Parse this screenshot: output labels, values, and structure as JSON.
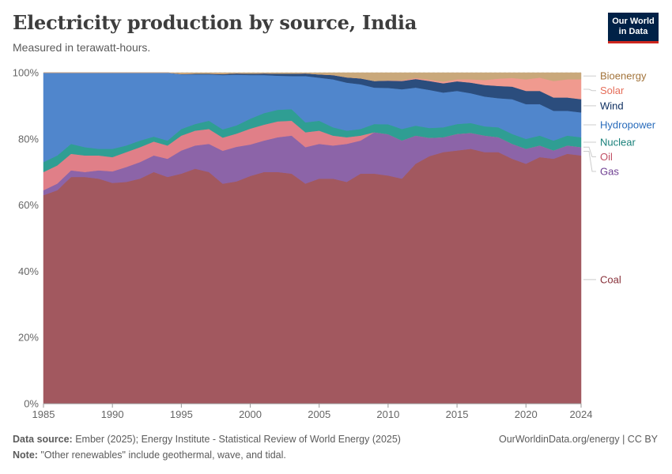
{
  "header": {
    "title": "Electricity production by source, India",
    "subtitle": "Measured in terawatt-hours.",
    "logo_line1": "Our World",
    "logo_line2": "in Data"
  },
  "footer": {
    "source_label": "Data source:",
    "source_text": "Ember (2025); Energy Institute - Statistical Review of World Energy (2025)",
    "note_label": "Note:",
    "note_text": "\"Other renewables\" include geothermal, wave, and tidal.",
    "credit": "OurWorldinData.org/energy | CC BY"
  },
  "chart_data": {
    "type": "area",
    "stacked": true,
    "relative": true,
    "title": "Electricity production by source, India",
    "subtitle": "Measured in terawatt-hours.",
    "x_tick_labels": [
      "1985",
      "1990",
      "1995",
      "2000",
      "2005",
      "2010",
      "2015",
      "2020",
      "2024"
    ],
    "x_ticks": [
      1985,
      1990,
      1995,
      2000,
      2005,
      2010,
      2015,
      2020,
      2024
    ],
    "y_tick_labels": [
      "0%",
      "20%",
      "40%",
      "60%",
      "80%",
      "100%"
    ],
    "y_ticks": [
      0,
      20,
      40,
      60,
      80,
      100
    ],
    "xlim": [
      1985,
      2024
    ],
    "ylim": [
      0,
      100
    ],
    "grid": "horizontal dashed",
    "legend": "right, inline labels",
    "x": [
      1985,
      1986,
      1987,
      1988,
      1989,
      1990,
      1991,
      1992,
      1993,
      1994,
      1995,
      1996,
      1997,
      1998,
      1999,
      2000,
      2001,
      2002,
      2003,
      2004,
      2005,
      2006,
      2007,
      2008,
      2009,
      2010,
      2011,
      2012,
      2013,
      2014,
      2015,
      2016,
      2017,
      2018,
      2019,
      2020,
      2021,
      2022,
      2023,
      2024
    ],
    "series": [
      {
        "name": "Coal",
        "color": "#a2585f",
        "label_color": "#883039",
        "values": [
          63.0,
          64.5,
          68.5,
          68.5,
          68.0,
          66.7,
          67.0,
          68.0,
          70.0,
          68.5,
          69.5,
          71.0,
          70.0,
          66.8,
          67.5,
          68.8,
          70.0,
          70.0,
          69.5,
          66.5,
          68.0,
          68.0,
          67.0,
          69.5,
          69.5,
          69.0,
          68.0,
          72.5,
          74.8,
          76.0,
          76.5,
          77.0,
          76.0,
          76.0,
          74.0,
          72.5,
          74.5,
          74.0,
          75.5,
          75.0
        ]
      },
      {
        "name": "Gas",
        "color": "#8c64a8",
        "label_color": "#6d3e91",
        "values": [
          1.5,
          2.0,
          2.0,
          1.5,
          2.5,
          3.5,
          4.5,
          5.0,
          5.0,
          5.5,
          7.0,
          7.0,
          8.5,
          10.0,
          10.5,
          9.5,
          9.5,
          10.5,
          11.5,
          11.0,
          10.5,
          10.0,
          11.5,
          10.0,
          12.5,
          12.5,
          11.5,
          8.5,
          5.5,
          4.5,
          5.0,
          4.8,
          5.0,
          4.5,
          4.5,
          4.5,
          3.5,
          2.5,
          2.5,
          2.5
        ]
      },
      {
        "name": "Oil",
        "color": "#e07f88",
        "label_color": "#c15065",
        "values": [
          5.5,
          5.5,
          5.0,
          5.0,
          4.5,
          4.3,
          4.5,
          4.5,
          4.2,
          4.0,
          4.5,
          4.5,
          4.5,
          4.0,
          4.0,
          4.8,
          4.8,
          4.8,
          4.5,
          4.5,
          4.0,
          3.0,
          2.0,
          1.5,
          0.0,
          0.0,
          0.0,
          0.0,
          0.0,
          0.0,
          0.0,
          0.0,
          0.0,
          0.0,
          0.0,
          0.0,
          0.0,
          0.0,
          0.0,
          0.0
        ]
      },
      {
        "name": "Nuclear",
        "color": "#2f9e93",
        "label_color": "#18807a",
        "values": [
          3.0,
          3.0,
          3.0,
          2.5,
          2.0,
          2.5,
          2.0,
          2.0,
          1.5,
          1.5,
          2.0,
          2.0,
          2.5,
          2.5,
          2.5,
          3.0,
          3.5,
          3.5,
          3.5,
          3.0,
          3.0,
          2.5,
          2.0,
          2.0,
          2.5,
          3.0,
          3.5,
          3.0,
          3.0,
          3.0,
          3.0,
          3.0,
          2.8,
          3.0,
          3.0,
          3.0,
          3.0,
          3.0,
          3.0,
          3.0
        ]
      },
      {
        "name": "Hydropower",
        "color": "#5086cc",
        "label_color": "#286bbb",
        "values": [
          27.0,
          25.0,
          21.5,
          22.5,
          23.0,
          23.0,
          22.0,
          20.5,
          19.3,
          20.5,
          16.5,
          15.0,
          14.0,
          16.5,
          15.4,
          13.2,
          11.5,
          10.3,
          10.0,
          14.0,
          13.0,
          14.5,
          14.5,
          13.5,
          11.0,
          11.0,
          12.0,
          11.5,
          11.5,
          10.5,
          10.0,
          9.0,
          9.0,
          8.8,
          10.5,
          10.5,
          9.5,
          9.0,
          7.5,
          7.5
        ]
      },
      {
        "name": "Wind",
        "color": "#2b4d7d",
        "label_color": "#0b2c5e",
        "values": [
          0.0,
          0.0,
          0.0,
          0.0,
          0.0,
          0.0,
          0.0,
          0.0,
          0.0,
          0.0,
          0.1,
          0.2,
          0.2,
          0.3,
          0.4,
          0.4,
          0.5,
          0.6,
          0.7,
          0.8,
          1.0,
          1.3,
          1.6,
          1.8,
          2.0,
          2.2,
          2.5,
          2.6,
          2.7,
          2.8,
          2.9,
          3.2,
          3.5,
          3.7,
          3.8,
          4.0,
          4.0,
          4.0,
          4.0,
          4.0
        ]
      },
      {
        "name": "Solar",
        "color": "#f09a8f",
        "label_color": "#e56e5a",
        "values": [
          0.0,
          0.0,
          0.0,
          0.0,
          0.0,
          0.0,
          0.0,
          0.0,
          0.0,
          0.0,
          0.0,
          0.0,
          0.0,
          0.0,
          0.0,
          0.0,
          0.0,
          0.0,
          0.0,
          0.0,
          0.0,
          0.0,
          0.0,
          0.0,
          0.0,
          0.1,
          0.2,
          0.3,
          0.4,
          0.5,
          0.6,
          1.0,
          1.5,
          2.2,
          2.6,
          3.5,
          4.0,
          5.0,
          5.5,
          6.0
        ]
      },
      {
        "name": "Bioenergy",
        "color": "#c9a87b",
        "label_color": "#a2733a",
        "values": [
          0.0,
          0.0,
          0.0,
          0.0,
          0.0,
          0.0,
          0.0,
          0.0,
          0.0,
          0.0,
          0.4,
          0.3,
          0.3,
          0.4,
          0.2,
          0.3,
          0.2,
          0.3,
          0.3,
          0.2,
          0.5,
          0.7,
          1.4,
          1.7,
          2.5,
          2.3,
          2.3,
          1.6,
          2.1,
          2.7,
          2.0,
          2.0,
          2.2,
          1.8,
          1.6,
          2.0,
          1.5,
          2.5,
          2.0,
          2.0
        ]
      }
    ]
  }
}
